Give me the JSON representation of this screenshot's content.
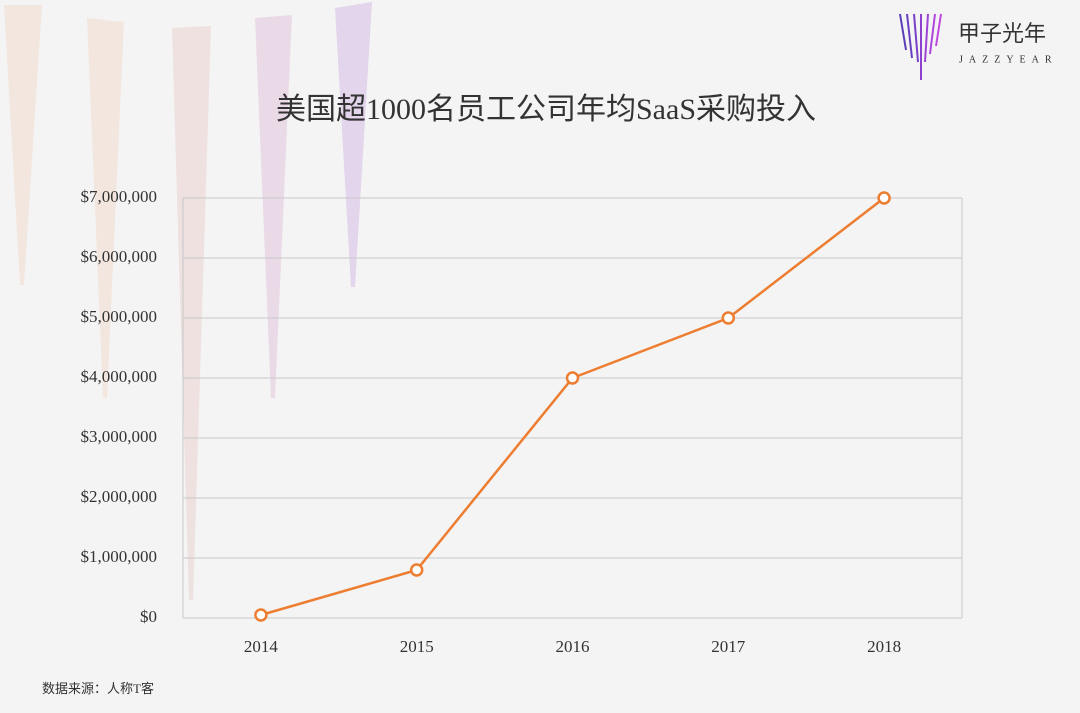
{
  "chart_data": {
    "type": "line",
    "title": "美国超1000名员工公司年均SaaS采购投入",
    "categories": [
      "2014",
      "2015",
      "2016",
      "2017",
      "2018"
    ],
    "series": [
      {
        "name": "SaaS采购投入",
        "color": "#ed7d31",
        "values": [
          50000,
          800000,
          4000000,
          5000000,
          7000000
        ]
      }
    ],
    "ylim": [
      0,
      7000000
    ],
    "yticks": [
      {
        "value": 0,
        "label": "$0"
      },
      {
        "value": 1000000,
        "label": "$1,000,000"
      },
      {
        "value": 2000000,
        "label": "$2,000,000"
      },
      {
        "value": 3000000,
        "label": "$3,000,000"
      },
      {
        "value": 4000000,
        "label": "$4,000,000"
      },
      {
        "value": 5000000,
        "label": "$5,000,000"
      },
      {
        "value": 6000000,
        "label": "$6,000,000"
      },
      {
        "value": 7000000,
        "label": "$7,000,000"
      }
    ],
    "grid": true,
    "source": "数据来源：人称T客"
  },
  "logo": {
    "name": "甲子光年",
    "sub": "JAZZYEAR"
  }
}
